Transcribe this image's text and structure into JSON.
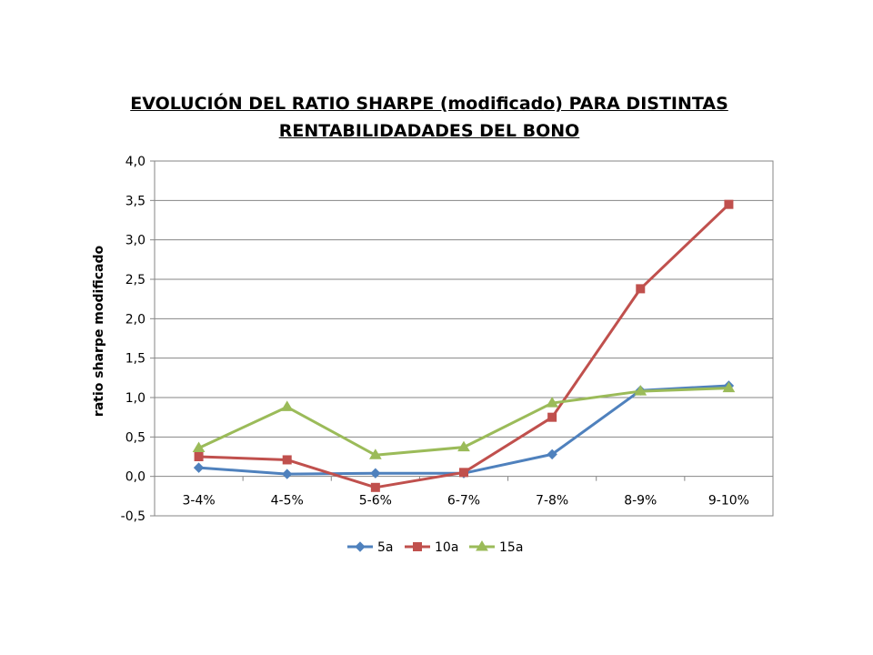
{
  "chart_data": {
    "type": "line",
    "title_line1": "EVOLUCIÓN DEL RATIO SHARPE (modificado) PARA DISTINTAS",
    "title_line2": "RENTABILIDADADES DEL BONO",
    "xlabel": "",
    "ylabel": "ratio sharpe modificado",
    "categories": [
      "3-4%",
      "4-5%",
      "5-6%",
      "6-7%",
      "7-8%",
      "8-9%",
      "9-10%"
    ],
    "ylim": [
      -0.5,
      4.0
    ],
    "yticks": [
      -0.5,
      0.0,
      0.5,
      1.0,
      1.5,
      2.0,
      2.5,
      3.0,
      3.5,
      4.0
    ],
    "ytick_labels": [
      "-0,5",
      "0,0",
      "0,5",
      "1,0",
      "1,5",
      "2,0",
      "2,5",
      "3,0",
      "3,5",
      "4,0"
    ],
    "grid": true,
    "legend_position": "bottom",
    "series": [
      {
        "name": "5a",
        "color": "#4F81BD",
        "marker": "diamond",
        "values": [
          0.11,
          0.03,
          0.04,
          0.04,
          0.28,
          1.09,
          1.15
        ]
      },
      {
        "name": "10a",
        "color": "#C0504D",
        "marker": "square",
        "values": [
          0.25,
          0.21,
          -0.14,
          0.05,
          0.75,
          2.38,
          3.45
        ]
      },
      {
        "name": "15a",
        "color": "#9BBB59",
        "marker": "triangle",
        "values": [
          0.36,
          0.88,
          0.27,
          0.37,
          0.93,
          1.08,
          1.12
        ]
      }
    ]
  }
}
